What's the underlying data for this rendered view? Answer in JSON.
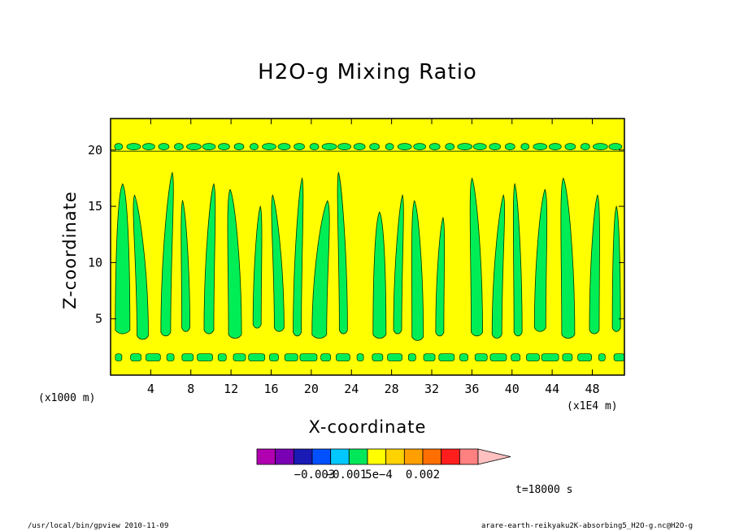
{
  "chart_data": {
    "type": "heatmap",
    "title": "H2O-g Mixing Ratio",
    "xlabel": "X-coordinate",
    "ylabel": "Z-coordinate",
    "x_unit_left": "(x1000 m)",
    "x_unit_right": "(x1E4 m)",
    "xlim": [
      0,
      51.2
    ],
    "ylim": [
      0,
      22.8
    ],
    "x_ticks": [
      "4",
      "8",
      "12",
      "16",
      "20",
      "24",
      "28",
      "32",
      "36",
      "40",
      "44",
      "48"
    ],
    "y_ticks": [
      "5",
      "10",
      "15",
      "20"
    ],
    "colorbar": {
      "colors": [
        "#b000b0",
        "#7a00b4",
        "#1a1ab4",
        "#0050ff",
        "#00c8ff",
        "#00e85a",
        "#ffff00",
        "#ffd200",
        "#ffa000",
        "#ff6e00",
        "#ff1e1e",
        "#ff8080",
        "#ffc0c0"
      ],
      "labels": [
        "−0.003",
        "−0.001",
        "5e−4",
        "0.002"
      ]
    },
    "background_level_color": "#ffff00",
    "anomaly_level_color": "#00ee55",
    "time_label": "t=18000 s"
  },
  "footer": {
    "left": "/usr/local/bin/gpview  2010-11-09",
    "right": "arare-earth-reikyaku2K-absorbing5_H2O-g.nc@H2O-g"
  }
}
